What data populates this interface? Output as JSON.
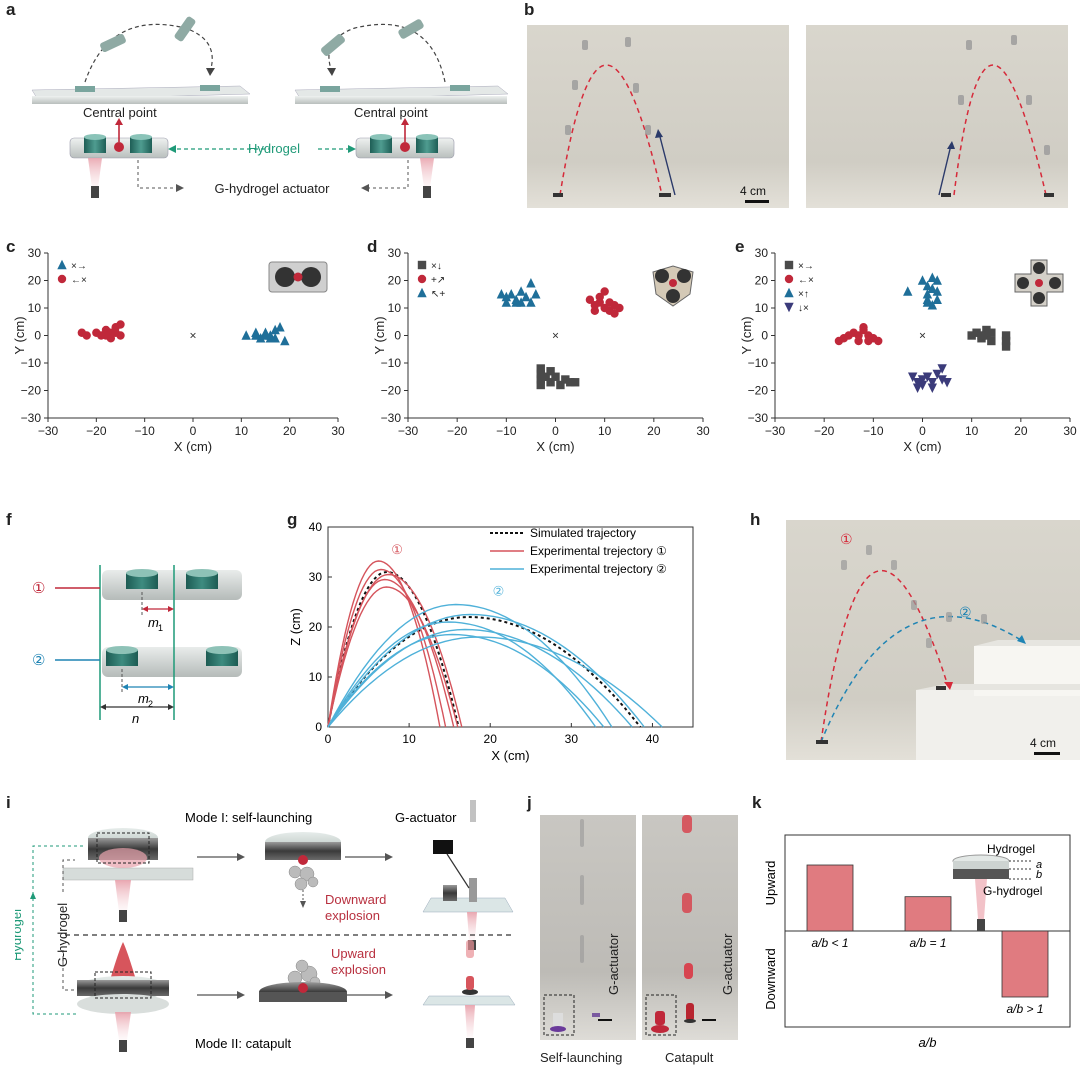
{
  "panels": {
    "a": {
      "label": "a",
      "central_point_left": "Central point",
      "central_point_right": "Central point",
      "hydrogel": "Hydrogel",
      "actuator": "G-hydrogel actuator"
    },
    "b": {
      "label": "b",
      "scale": "4 cm"
    },
    "c": {
      "label": "c"
    },
    "d": {
      "label": "d"
    },
    "e": {
      "label": "e"
    },
    "f": {
      "label": "f",
      "mark1": "①",
      "mark2": "②",
      "m1": "m",
      "m1_sub": "1",
      "m2": "m",
      "m2_sub": "2",
      "n": "n"
    },
    "g": {
      "label": "g"
    },
    "h": {
      "label": "h",
      "mark1": "①",
      "mark2": "②",
      "scale": "4 cm"
    },
    "i": {
      "label": "i",
      "mode1": "Mode I: self-launching",
      "mode2": "Mode II: catapult",
      "g_actuator": "G-actuator",
      "downward": "Downward",
      "explosion1": "explosion",
      "upward": "Upward",
      "explosion2": "explosion",
      "hydrogel": "Hydrogel",
      "g_hydrogel": "G-hydrogel"
    },
    "j": {
      "label": "j",
      "g_actuator_left": "G-actuator",
      "g_actuator_right": "G-actuator",
      "self_launching": "Self-launching",
      "catapult": "Catapult"
    },
    "k": {
      "label": "k",
      "upward": "Upward",
      "downward": "Downward",
      "xlabel": "a/b",
      "hydrogel": "Hydrogel",
      "a": "a",
      "b": "b",
      "g_hydrogel": "G-hydrogel"
    }
  },
  "chart_data": [
    {
      "id": "c",
      "type": "scatter",
      "xlabel": "X (cm)",
      "ylabel": "Y (cm)",
      "xlim": [
        -30,
        30
      ],
      "ylim": [
        -30,
        30
      ],
      "xticks": [
        "-30",
        "-20",
        "-10",
        "0",
        "10",
        "20",
        "30"
      ],
      "yticks": [
        "30",
        "20",
        "10",
        "0",
        "-10",
        "-20",
        "-30"
      ],
      "origin_marker": "×",
      "legend": [
        {
          "label": "×→",
          "color": "#1f6f99",
          "marker": "triangle"
        },
        {
          "label": "←×",
          "color": "#c0283a",
          "marker": "circle"
        }
      ],
      "series": [
        {
          "name": "×→",
          "color": "#1f6f99",
          "marker": "triangle",
          "points": [
            [
              11,
              0
            ],
            [
              13,
              1
            ],
            [
              14,
              -1
            ],
            [
              15,
              1
            ],
            [
              16,
              0
            ],
            [
              17,
              2
            ],
            [
              17,
              -1
            ],
            [
              18,
              3
            ],
            [
              19,
              -2
            ],
            [
              16,
              -1
            ],
            [
              15,
              0
            ],
            [
              13,
              0
            ]
          ]
        },
        {
          "name": "←×",
          "color": "#c0283a",
          "marker": "circle",
          "points": [
            [
              -23,
              1
            ],
            [
              -22,
              0
            ],
            [
              -20,
              1
            ],
            [
              -19,
              0
            ],
            [
              -18,
              2
            ],
            [
              -17,
              1
            ],
            [
              -17,
              -1
            ],
            [
              -16,
              3
            ],
            [
              -16,
              1
            ],
            [
              -15,
              4
            ],
            [
              -15,
              0
            ],
            [
              -18,
              0
            ]
          ]
        }
      ]
    },
    {
      "id": "d",
      "type": "scatter",
      "xlabel": "X (cm)",
      "ylabel": "Y (cm)",
      "xlim": [
        -30,
        30
      ],
      "ylim": [
        -30,
        30
      ],
      "xticks": [
        "-30",
        "-20",
        "-10",
        "0",
        "10",
        "20",
        "30"
      ],
      "yticks": [
        "30",
        "20",
        "10",
        "0",
        "-10",
        "-20",
        "-30"
      ],
      "origin_marker": "×",
      "legend": [
        {
          "label": "×↓",
          "color": "#4a4a4a",
          "marker": "square"
        },
        {
          "label": "+↗",
          "color": "#c0283a",
          "marker": "circle"
        },
        {
          "label": "↖+",
          "color": "#1f6f99",
          "marker": "triangle"
        }
      ],
      "series": [
        {
          "name": "↓",
          "color": "#4a4a4a",
          "marker": "square",
          "points": [
            [
              -3,
              -12
            ],
            [
              -3,
              -14
            ],
            [
              -3,
              -16
            ],
            [
              -3,
              -18
            ],
            [
              -1,
              -13
            ],
            [
              -1,
              -17
            ],
            [
              0,
              -15
            ],
            [
              1,
              -18
            ],
            [
              2,
              -16
            ],
            [
              3,
              -17
            ],
            [
              4,
              -17
            ],
            [
              -2,
              -15
            ]
          ]
        },
        {
          "name": "↗",
          "color": "#c0283a",
          "marker": "circle",
          "points": [
            [
              7,
              13
            ],
            [
              8,
              11
            ],
            [
              8,
              9
            ],
            [
              9,
              14
            ],
            [
              9,
              12
            ],
            [
              10,
              16
            ],
            [
              10,
              10
            ],
            [
              11,
              12
            ],
            [
              11,
              9
            ],
            [
              12,
              11
            ],
            [
              12,
              8
            ],
            [
              13,
              10
            ]
          ]
        },
        {
          "name": "↖",
          "color": "#1f6f99",
          "marker": "triangle",
          "points": [
            [
              -11,
              15
            ],
            [
              -10,
              14
            ],
            [
              -10,
              12
            ],
            [
              -9,
              15
            ],
            [
              -8,
              13
            ],
            [
              -7,
              16
            ],
            [
              -7,
              12
            ],
            [
              -6,
              14
            ],
            [
              -5,
              19
            ],
            [
              -5,
              12
            ],
            [
              -4,
              15
            ],
            [
              -8,
              12
            ]
          ]
        }
      ]
    },
    {
      "id": "e",
      "type": "scatter",
      "xlabel": "X (cm)",
      "ylabel": "Y (cm)",
      "xlim": [
        -30,
        30
      ],
      "ylim": [
        -30,
        30
      ],
      "xticks": [
        "-30",
        "-20",
        "-10",
        "0",
        "10",
        "20",
        "30"
      ],
      "yticks": [
        "30",
        "20",
        "10",
        "0",
        "-10",
        "-20",
        "-30"
      ],
      "origin_marker": "×",
      "legend": [
        {
          "label": "×→",
          "color": "#4a4a4a",
          "marker": "square"
        },
        {
          "label": "←×",
          "color": "#c0283a",
          "marker": "circle"
        },
        {
          "label": "×↑",
          "color": "#1f6f99",
          "marker": "triangle"
        },
        {
          "label": "↓×",
          "color": "#3b3b7a",
          "marker": "triangle-down"
        }
      ],
      "series": [
        {
          "name": "→",
          "color": "#4a4a4a",
          "marker": "square",
          "points": [
            [
              10,
              0
            ],
            [
              11,
              1
            ],
            [
              12,
              -1
            ],
            [
              13,
              2
            ],
            [
              13,
              0
            ],
            [
              14,
              -2
            ],
            [
              14,
              1
            ],
            [
              17,
              0
            ],
            [
              17,
              -2
            ],
            [
              17,
              -4
            ],
            [
              12,
              0
            ]
          ]
        },
        {
          "name": "←",
          "color": "#c0283a",
          "marker": "circle",
          "points": [
            [
              -17,
              -2
            ],
            [
              -16,
              -1
            ],
            [
              -15,
              0
            ],
            [
              -14,
              1
            ],
            [
              -13,
              -2
            ],
            [
              -13,
              0
            ],
            [
              -12,
              2
            ],
            [
              -12,
              3
            ],
            [
              -11,
              0
            ],
            [
              -10,
              -1
            ],
            [
              -9,
              -2
            ],
            [
              -11,
              -2
            ]
          ]
        },
        {
          "name": "↑",
          "color": "#1f6f99",
          "marker": "triangle",
          "points": [
            [
              -3,
              16
            ],
            [
              0,
              20
            ],
            [
              1,
              18
            ],
            [
              1,
              15
            ],
            [
              1,
              13
            ],
            [
              2,
              21
            ],
            [
              2,
              17
            ],
            [
              2,
              11
            ],
            [
              3,
              16
            ],
            [
              3,
              13
            ],
            [
              3,
              20
            ],
            [
              1,
              12
            ]
          ]
        },
        {
          "name": "↓",
          "color": "#3b3b7a",
          "marker": "triangle-down",
          "points": [
            [
              -2,
              -15
            ],
            [
              -1,
              -17
            ],
            [
              -1,
              -19
            ],
            [
              0,
              -16
            ],
            [
              0,
              -18
            ],
            [
              1,
              -15
            ],
            [
              2,
              -17
            ],
            [
              2,
              -19
            ],
            [
              3,
              -14
            ],
            [
              4,
              -12
            ],
            [
              4,
              -16
            ],
            [
              5,
              -17
            ]
          ]
        }
      ]
    },
    {
      "id": "g",
      "type": "line",
      "xlabel": "X (cm)",
      "ylabel": "Z (cm)",
      "xlim": [
        0,
        45
      ],
      "ylim": [
        0,
        40
      ],
      "xticks": [
        "0",
        "10",
        "20",
        "30",
        "40"
      ],
      "yticks": [
        "40",
        "30",
        "20",
        "10",
        "0"
      ],
      "legend": [
        "Simulated trajectory",
        "Experimental trejectory ①",
        "Experimental trejectory ②"
      ],
      "annotation_1": "①",
      "annotation_2": "②",
      "series": [
        {
          "name": "Simulated trajectory",
          "color": "#111111",
          "dashed": true,
          "range": 16.1,
          "peak": 31.0
        },
        {
          "name": "Simulated trajectory",
          "color": "#111111",
          "dashed": true,
          "range": 38.5,
          "peak": 22.0
        },
        {
          "name": "Experimental trejectory ①",
          "color": "#d5545c",
          "range": 13.8,
          "peak": 33.2
        },
        {
          "name": "Experimental trejectory ①",
          "color": "#d5545c",
          "range": 14.5,
          "peak": 31.5
        },
        {
          "name": "Experimental trejectory ①",
          "color": "#d5545c",
          "range": 15.5,
          "peak": 29.5
        },
        {
          "name": "Experimental trejectory ①",
          "color": "#d5545c",
          "range": 16.5,
          "peak": 30.5
        },
        {
          "name": "Experimental trejectory ①",
          "color": "#d5545c",
          "range": 16.0,
          "peak": 28.0
        },
        {
          "name": "Experimental trejectory ②",
          "color": "#4fb1d9",
          "range": 33.0,
          "peak": 21.0
        },
        {
          "name": "Experimental trejectory ②",
          "color": "#4fb1d9",
          "range": 35.0,
          "peak": 24.5
        },
        {
          "name": "Experimental trejectory ②",
          "color": "#4fb1d9",
          "range": 34.0,
          "peak": 18.5
        },
        {
          "name": "Experimental trejectory ②",
          "color": "#4fb1d9",
          "range": 37.5,
          "peak": 19.5
        },
        {
          "name": "Experimental trejectory ②",
          "color": "#4fb1d9",
          "range": 41.2,
          "peak": 18.0
        },
        {
          "name": "Experimental trejectory ②",
          "color": "#4fb1d9",
          "range": 39.0,
          "peak": 22.5
        }
      ]
    },
    {
      "id": "k",
      "type": "bar",
      "xlabel": "a/b",
      "categories": [
        "a/b < 1",
        "a/b = 1",
        "a/b > 1"
      ],
      "values": [
        1.0,
        0.52,
        -1.0
      ],
      "color": "#e07b80"
    }
  ]
}
